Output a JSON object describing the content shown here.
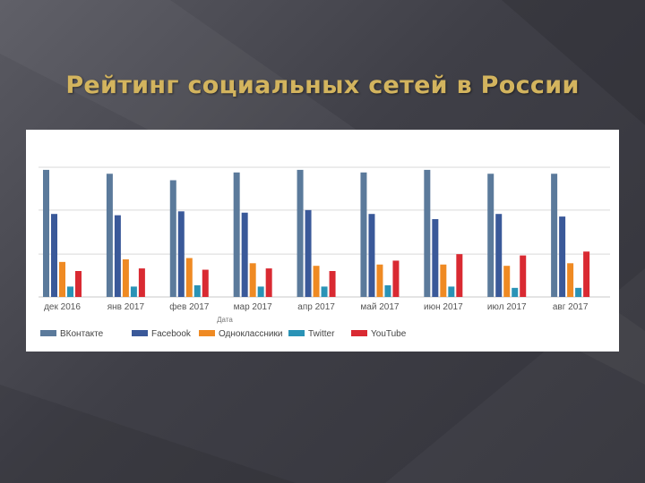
{
  "slide": {
    "title": "Рейтинг социальных сетей в России"
  },
  "chart_data": {
    "type": "bar",
    "title": "",
    "xlabel": "Дата",
    "ylabel": "",
    "categories": [
      "дек 2016",
      "янв 2017",
      "фев 2017",
      "мар 2017",
      "апр 2017",
      "май 2017",
      "июн 2017",
      "июл 2017",
      "авг 2017"
    ],
    "ylim": [
      0,
      1.0
    ],
    "grid": true,
    "legend": "bottom",
    "series": [
      {
        "name": "ВКонтакте",
        "color": "#5b7a9b",
        "values": [
          0.98,
          0.95,
          0.9,
          0.96,
          0.98,
          0.96,
          0.98,
          0.95,
          0.95
        ]
      },
      {
        "name": "Facebook",
        "color": "#3a5999",
        "values": [
          0.64,
          0.63,
          0.66,
          0.65,
          0.67,
          0.64,
          0.6,
          0.64,
          0.62
        ]
      },
      {
        "name": "Одноклассники",
        "color": "#ef8a23",
        "values": [
          0.27,
          0.29,
          0.3,
          0.26,
          0.24,
          0.25,
          0.25,
          0.24,
          0.26
        ]
      },
      {
        "name": "Twitter",
        "color": "#2a93b6",
        "values": [
          0.08,
          0.08,
          0.09,
          0.08,
          0.08,
          0.09,
          0.08,
          0.07,
          0.07
        ]
      },
      {
        "name": "YouTube",
        "color": "#d92a32",
        "values": [
          0.2,
          0.22,
          0.21,
          0.22,
          0.2,
          0.28,
          0.33,
          0.32,
          0.35
        ]
      }
    ]
  }
}
